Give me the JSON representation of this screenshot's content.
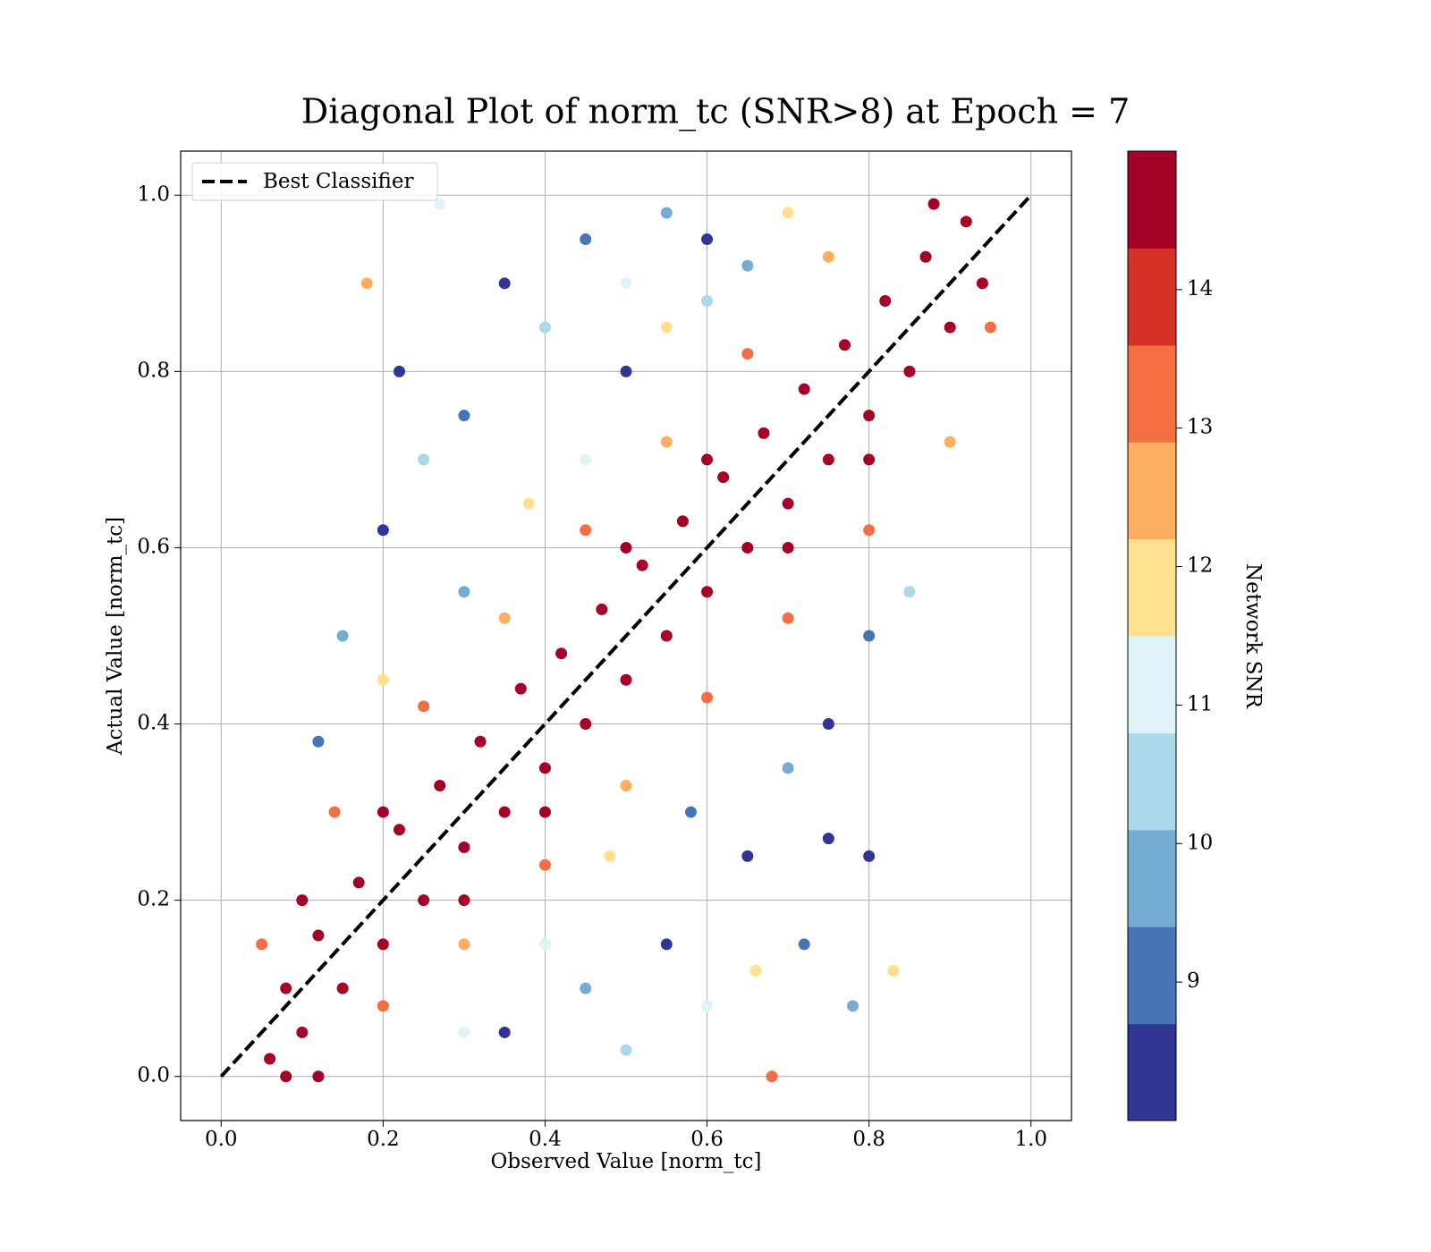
{
  "chart_data": {
    "type": "scatter",
    "title": "Diagonal Plot of norm_tc (SNR>8) at Epoch = 7",
    "xlabel": "Observed Value [norm_tc]",
    "ylabel": "Actual Value [norm_tc]",
    "xlim": [
      -0.05,
      1.05
    ],
    "ylim": [
      -0.05,
      1.05
    ],
    "xticks": [
      {
        "value": 0,
        "label": "0.0"
      },
      {
        "value": 0.2,
        "label": "0.2"
      },
      {
        "value": 0.4,
        "label": "0.4"
      },
      {
        "value": 0.6,
        "label": "0.6"
      },
      {
        "value": 0.8,
        "label": "0.8"
      },
      {
        "value": 1,
        "label": "1.0"
      }
    ],
    "yticks": [
      {
        "value": 0,
        "label": "0.0"
      },
      {
        "value": 0.2,
        "label": "0.2"
      },
      {
        "value": 0.4,
        "label": "0.4"
      },
      {
        "value": 0.6,
        "label": "0.6"
      },
      {
        "value": 0.8,
        "label": "0.8"
      },
      {
        "value": 1,
        "label": "1.0"
      }
    ],
    "grid": true,
    "legend_loc": "upper left",
    "points": {
      "x": [
        0.06,
        0.08,
        0.1,
        0.12,
        0.15,
        0.17,
        0.2,
        0.22,
        0.25,
        0.27,
        0.3,
        0.32,
        0.35,
        0.37,
        0.4,
        0.42,
        0.45,
        0.47,
        0.5,
        0.52,
        0.55,
        0.57,
        0.6,
        0.62,
        0.65,
        0.67,
        0.7,
        0.72,
        0.75,
        0.77,
        0.8,
        0.82,
        0.85,
        0.87,
        0.9,
        0.92,
        0.88,
        0.94,
        0.1,
        0.2,
        0.3,
        0.4,
        0.5,
        0.6,
        0.7,
        0.8,
        0.08,
        0.12,
        0.05,
        0.14,
        0.25,
        0.35,
        0.45,
        0.55,
        0.65,
        0.75,
        0.2,
        0.3,
        0.4,
        0.5,
        0.6,
        0.7,
        0.8,
        0.9,
        0.95,
        0.15,
        0.2,
        0.25,
        0.22,
        0.3,
        0.35,
        0.4,
        0.45,
        0.5,
        0.55,
        0.6,
        0.45,
        0.38,
        0.3,
        0.2,
        0.12,
        0.5,
        0.6,
        0.7,
        0.65,
        0.35,
        0.45,
        0.55,
        0.5,
        0.6,
        0.65,
        0.7,
        0.75,
        0.8,
        0.85,
        0.72,
        0.78,
        0.66,
        0.58,
        0.4,
        0.3,
        0.75,
        0.83,
        0.18,
        0.8,
        0.27,
        0.55,
        0.48,
        0.68
      ],
      "y": [
        0.02,
        0.1,
        0.05,
        0.16,
        0.1,
        0.22,
        0.15,
        0.28,
        0.2,
        0.33,
        0.26,
        0.38,
        0.3,
        0.44,
        0.35,
        0.48,
        0.4,
        0.53,
        0.45,
        0.58,
        0.5,
        0.63,
        0.55,
        0.68,
        0.6,
        0.73,
        0.65,
        0.78,
        0.7,
        0.83,
        0.75,
        0.88,
        0.8,
        0.93,
        0.85,
        0.97,
        0.99,
        0.9,
        0.2,
        0.3,
        0.2,
        0.3,
        0.6,
        0.7,
        0.6,
        0.7,
        0.0,
        0.0,
        0.15,
        0.3,
        0.42,
        0.52,
        0.62,
        0.72,
        0.82,
        0.93,
        0.08,
        0.15,
        0.24,
        0.33,
        0.43,
        0.52,
        0.62,
        0.72,
        0.85,
        0.5,
        0.62,
        0.7,
        0.8,
        0.75,
        0.9,
        0.85,
        0.95,
        0.9,
        0.98,
        0.95,
        0.7,
        0.65,
        0.55,
        0.45,
        0.38,
        0.8,
        0.88,
        0.98,
        0.92,
        0.05,
        0.1,
        0.15,
        0.03,
        0.08,
        0.25,
        0.35,
        0.4,
        0.5,
        0.55,
        0.15,
        0.08,
        0.12,
        0.3,
        0.15,
        0.05,
        0.27,
        0.12,
        0.9,
        0.25,
        0.99,
        0.85,
        0.25,
        0.0
      ],
      "c": [
        14.5,
        14.5,
        14.5,
        14.5,
        14.5,
        14.5,
        14.5,
        14.5,
        14.5,
        14.5,
        14.5,
        14.5,
        14.5,
        14.5,
        14.5,
        14.5,
        14.5,
        14.5,
        14.5,
        14.5,
        14.5,
        14.5,
        14.5,
        14.5,
        14.5,
        14.5,
        14.5,
        14.5,
        14.5,
        14.5,
        14.5,
        14.5,
        14.5,
        14.5,
        14.5,
        14.5,
        14.5,
        14.5,
        14.5,
        14.5,
        14.5,
        14.5,
        14.5,
        14.5,
        14.5,
        14.5,
        14.5,
        14.5,
        13.3,
        13.5,
        13.2,
        12.8,
        13.4,
        12.6,
        13.1,
        12.4,
        13.6,
        12.7,
        13.2,
        12.5,
        13.3,
        12.9,
        13.5,
        12.6,
        13.0,
        9.5,
        8.3,
        10.2,
        8.3,
        9.0,
        8.4,
        10.5,
        8.8,
        11.2,
        9.8,
        8.2,
        10.8,
        11.8,
        10.0,
        11.5,
        9.2,
        8.6,
        10.3,
        11.6,
        9.4,
        8.5,
        9.6,
        8.3,
        10.4,
        11.0,
        8.7,
        9.9,
        8.4,
        9.1,
        10.6,
        8.9,
        10.1,
        11.7,
        9.3,
        10.8,
        11.4,
        8.2,
        12.2,
        12.4,
        8.6,
        11.1,
        12.1,
        11.9,
        13.0
      ]
    },
    "lines": [
      {
        "name": "Best Classifier",
        "x": [
          0,
          1
        ],
        "y": [
          0,
          1
        ],
        "color": "#000000",
        "dashed": true
      }
    ],
    "colorbar": {
      "label": "Network SNR",
      "lim": [
        8,
        15
      ],
      "ticks": [
        9,
        10,
        11,
        12,
        13,
        14
      ],
      "colors": [
        "#313695",
        "#4575b4",
        "#74add1",
        "#abd9e9",
        "#e0f3f8",
        "#fee090",
        "#fdae61",
        "#f46d43",
        "#d73027",
        "#a50026"
      ]
    }
  }
}
